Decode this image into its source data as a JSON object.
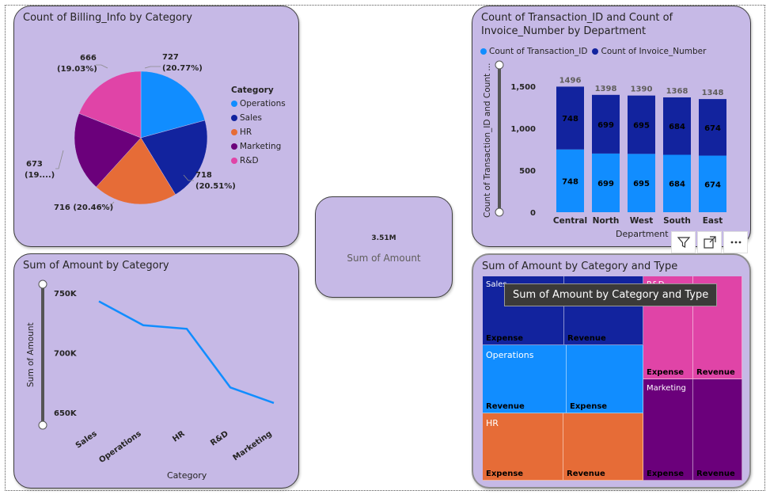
{
  "pie_card": {
    "title": "Count of Billing_Info by Category",
    "legend_title": "Category",
    "legend": [
      {
        "label": "Operations",
        "color": "#118dff"
      },
      {
        "label": "Sales",
        "color": "#12239e"
      },
      {
        "label": "HR",
        "color": "#e66c37"
      },
      {
        "label": "Marketing",
        "color": "#6b007b"
      },
      {
        "label": "R&D",
        "color": "#e044a7"
      }
    ],
    "labels": {
      "operations_value": "727",
      "operations_pct": "(20.77%)",
      "sales_value": "718",
      "sales_pct": "(20.51%)",
      "hr_label": "716 (20.46%)",
      "marketing_value": "673",
      "marketing_pct": "(19....)",
      "rd_value": "666",
      "rd_pct": "(19.03%)"
    }
  },
  "bar_card": {
    "title": "Count of Transaction_ID and Count of\nInvoice_Number by Department",
    "legend": [
      {
        "label": "Count of Transaction_ID",
        "color": "#118dff"
      },
      {
        "label": "Count of Invoice_Number",
        "color": "#12239e"
      }
    ],
    "y_axis_title": "Count of Transaction_ID and Count ...",
    "x_axis_title": "Department",
    "y_ticks": [
      "1,500",
      "1,000",
      "500",
      "0"
    ]
  },
  "line_card": {
    "title": "Sum of Amount by Category",
    "y_axis_title": "Sum of Amount",
    "x_axis_title": "Category",
    "y_ticks": [
      "750K",
      "700K",
      "650K"
    ]
  },
  "kpi_card": {
    "value": "3.51M",
    "label": "Sum of Amount"
  },
  "treemap_card": {
    "title": "Sum of Amount by Category and Type",
    "tooltip": "Sum of Amount by Category and Type",
    "cells": {
      "sales_group": "Sales",
      "sales_expense": "Expense",
      "sales_revenue": "Revenue",
      "operations_group": "Operations",
      "operations_revenue": "Revenue",
      "operations_expense": "Expense",
      "hr_group": "HR",
      "hr_expense": "Expense",
      "hr_revenue": "Revenue",
      "rd_group": "R&D",
      "rd_expense": "Expense",
      "rd_revenue": "Revenue",
      "marketing_group": "Marketing",
      "marketing_expense": "Expense",
      "marketing_revenue": "Revenue"
    }
  },
  "visual_header": {
    "icons": [
      "filter-icon",
      "focus-mode-icon",
      "more-options-icon"
    ]
  },
  "chart_data": [
    {
      "type": "pie",
      "title": "Count of Billing_Info by Category",
      "legend_title": "Category",
      "categories": [
        "Operations",
        "Sales",
        "HR",
        "Marketing",
        "R&D"
      ],
      "values": [
        727,
        718,
        716,
        673,
        666
      ],
      "percentages": [
        20.77,
        20.51,
        20.46,
        19.23,
        19.03
      ],
      "legend_position": "right"
    },
    {
      "type": "bar",
      "stacked": true,
      "title": "Count of Transaction_ID and Count of Invoice_Number by Department",
      "categories": [
        "Central",
        "North",
        "West",
        "South",
        "East"
      ],
      "series": [
        {
          "name": "Count of Transaction_ID",
          "values": [
            748,
            699,
            695,
            684,
            674
          ],
          "color": "#118dff"
        },
        {
          "name": "Count of Invoice_Number",
          "values": [
            748,
            699,
            695,
            684,
            674
          ],
          "color": "#12239e"
        }
      ],
      "totals": [
        1496,
        1398,
        1390,
        1368,
        1348
      ],
      "xlabel": "Department",
      "ylabel": "Count of Transaction_ID and Count ...",
      "ylim": [
        0,
        1600
      ],
      "y_ticks": [
        0,
        500,
        1000,
        1500
      ],
      "legend_position": "top-left"
    },
    {
      "type": "line",
      "title": "Sum of Amount by Category",
      "categories": [
        "Sales",
        "Operations",
        "HR",
        "R&D",
        "Marketing"
      ],
      "values": [
        743000,
        723000,
        720000,
        671000,
        658000
      ],
      "xlabel": "Category",
      "ylabel": "Sum of Amount",
      "ylim": [
        650000,
        750000
      ],
      "y_ticks": [
        650000,
        700000,
        750000
      ],
      "color": "#118dff"
    },
    {
      "type": "heatmap",
      "subtype": "treemap",
      "title": "Sum of Amount by Category and Type",
      "groups": [
        {
          "name": "Sales",
          "color": "#12239e",
          "children": [
            "Expense",
            "Revenue"
          ]
        },
        {
          "name": "Operations",
          "color": "#118dff",
          "children": [
            "Revenue",
            "Expense"
          ]
        },
        {
          "name": "HR",
          "color": "#e66c37",
          "children": [
            "Expense",
            "Revenue"
          ]
        },
        {
          "name": "R&D",
          "color": "#e044a7",
          "children": [
            "Expense",
            "Revenue"
          ]
        },
        {
          "name": "Marketing",
          "color": "#6b007b",
          "children": [
            "Expense",
            "Revenue"
          ]
        }
      ]
    }
  ]
}
